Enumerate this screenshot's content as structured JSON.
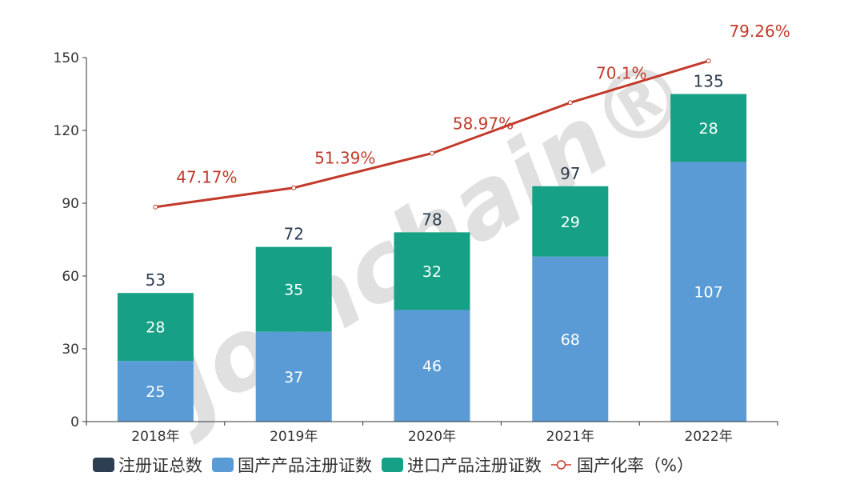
{
  "chart_data": {
    "type": "bar",
    "stacked": true,
    "categories": [
      "2018年",
      "2019年",
      "2020年",
      "2021年",
      "2022年"
    ],
    "ylim": [
      0,
      150
    ],
    "yticks": [
      0,
      30,
      60,
      90,
      120,
      150
    ],
    "y2lim": [
      0,
      80
    ],
    "y2_axis_visible": false,
    "grid": false,
    "legend_position": "bottom",
    "series": [
      {
        "name": "注册证总数",
        "type": "label-only",
        "color": "#2d3e50",
        "values": [
          53,
          72,
          78,
          97,
          135
        ]
      },
      {
        "name": "国产产品注册证数",
        "type": "bar",
        "color": "#5b9bd5",
        "values": [
          25,
          37,
          46,
          68,
          107
        ]
      },
      {
        "name": "进口产品注册证数",
        "type": "bar",
        "color": "#16a086",
        "values": [
          28,
          35,
          32,
          29,
          28
        ]
      },
      {
        "name": "国产化率（%）",
        "type": "line",
        "axis": "y2",
        "color": "#c23a2b",
        "values": [
          47.17,
          51.39,
          58.97,
          70.1,
          79.26
        ],
        "labels": [
          "47.17%",
          "51.39%",
          "58.97%",
          "70.1%",
          "79.26%"
        ]
      }
    ],
    "watermark": "Joinchain®"
  }
}
